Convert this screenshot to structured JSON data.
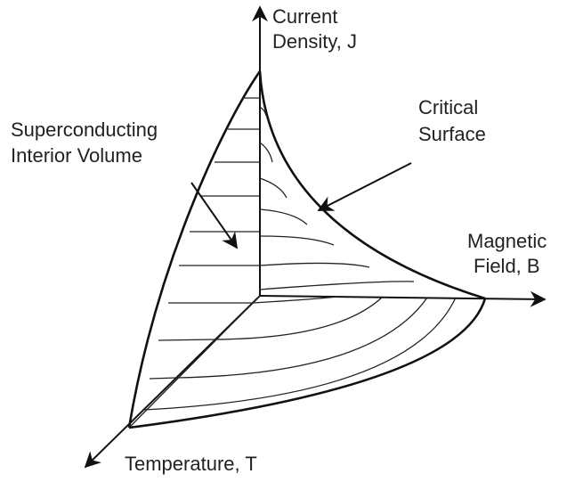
{
  "axes": {
    "current": {
      "lines": [
        "Current",
        "Density, J"
      ]
    },
    "field": {
      "lines": [
        "Magnetic",
        "Field, B"
      ]
    },
    "temperature": {
      "lines": [
        "Temperature, T"
      ]
    }
  },
  "annotations": {
    "interior": {
      "lines": [
        "Superconducting",
        "Interior Volume"
      ]
    },
    "surface": {
      "lines": [
        "Critical",
        "Surface"
      ]
    }
  }
}
